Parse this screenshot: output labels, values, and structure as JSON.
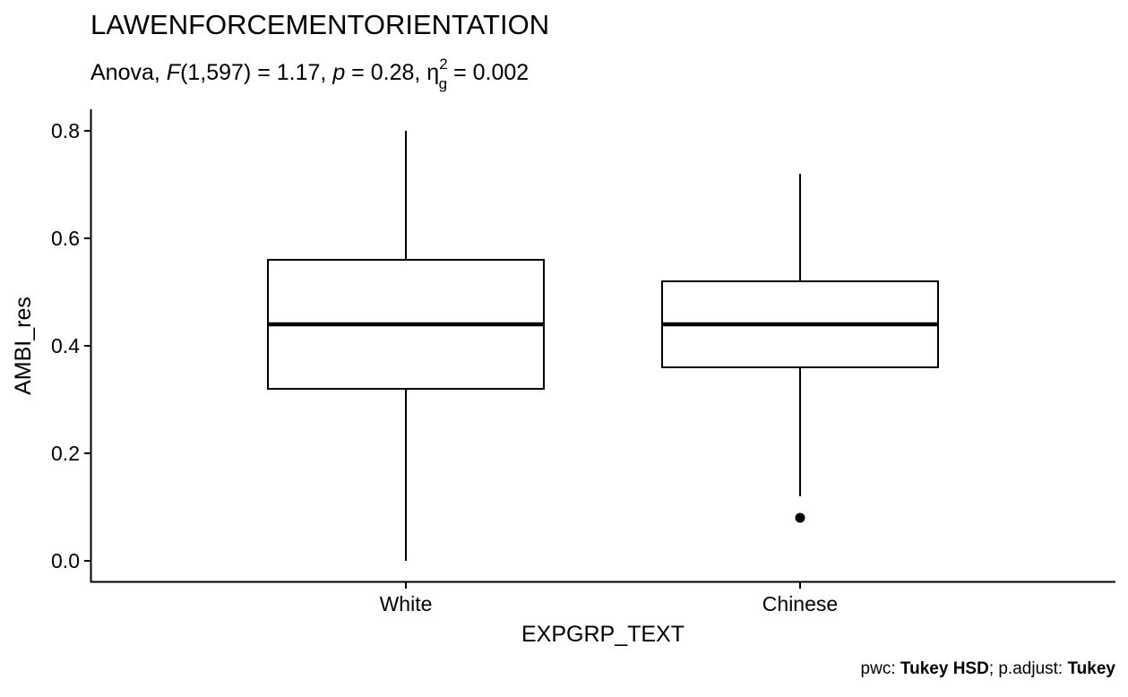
{
  "chart_data": {
    "type": "boxplot",
    "title": "LAWENFORCEMENTORIENTATION",
    "subtitle": {
      "prefix": "Anova, ",
      "f_symbol": "F",
      "f_args": "(1,597) = 1.17, ",
      "p_symbol": "p",
      "p_text": " = 0.28, ",
      "eta_symbol": "η",
      "eta_sup": "2",
      "eta_sub": "g",
      "eta_text": " = 0.002"
    },
    "xlabel": "EXPGRP_TEXT",
    "ylabel": "AMBI_res",
    "ylim": [
      -0.04,
      0.84
    ],
    "yticks": [
      {
        "value": 0.0,
        "label": "0.0"
      },
      {
        "value": 0.2,
        "label": "0.2"
      },
      {
        "value": 0.4,
        "label": "0.4"
      },
      {
        "value": 0.6,
        "label": "0.6"
      },
      {
        "value": 0.8,
        "label": "0.8"
      }
    ],
    "categories": [
      "White",
      "Chinese"
    ],
    "boxes": [
      {
        "category": "White",
        "whisker_low": 0.0,
        "q1": 0.32,
        "median": 0.44,
        "q3": 0.56,
        "whisker_high": 0.8,
        "outliers": []
      },
      {
        "category": "Chinese",
        "whisker_low": 0.12,
        "q1": 0.36,
        "median": 0.44,
        "q3": 0.52,
        "whisker_high": 0.72,
        "outliers": [
          0.08
        ]
      }
    ],
    "grid": false,
    "caption": {
      "pwc_label": "pwc: ",
      "pwc_method": "Tukey HSD",
      "sep": "; p.adjust: ",
      "adjust_method": "Tukey"
    }
  }
}
